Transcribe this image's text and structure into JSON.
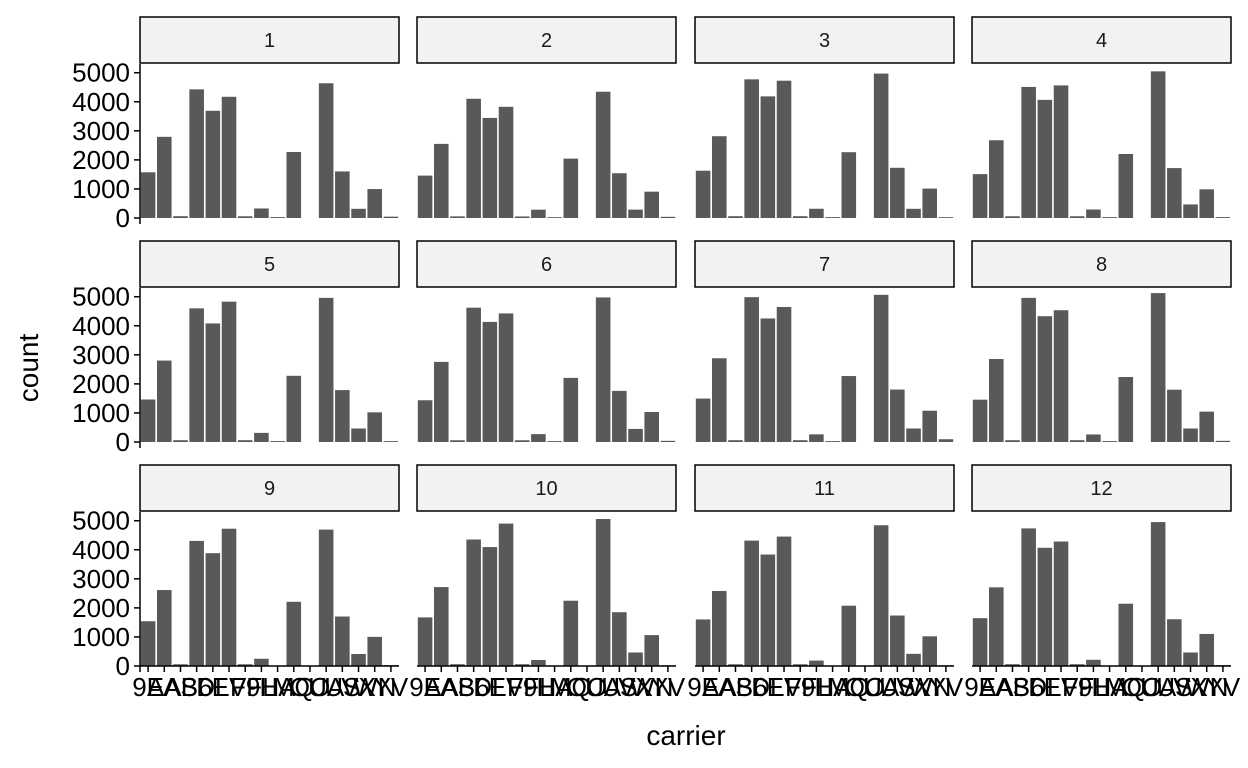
{
  "chart_data": {
    "type": "bar",
    "facet_by": "month",
    "facets": [
      "1",
      "2",
      "3",
      "4",
      "5",
      "6",
      "7",
      "8",
      "9",
      "10",
      "11",
      "12"
    ],
    "categories": [
      "9E",
      "AA",
      "AS",
      "B6",
      "DL",
      "EV",
      "F9",
      "FL",
      "HA",
      "MQ",
      "OO",
      "UA",
      "US",
      "VX",
      "WN",
      "YV"
    ],
    "xlabel": "carrier",
    "ylabel": "count",
    "ylim": [
      0,
      5300
    ],
    "yticks": [
      0,
      1000,
      2000,
      3000,
      4000,
      5000
    ],
    "bar_color": "#595959",
    "series": [
      {
        "name": "1",
        "values": [
          1573,
          2794,
          62,
          4427,
          3690,
          4171,
          59,
          328,
          31,
          2271,
          0,
          4637,
          1602,
          316,
          996,
          46
        ]
      },
      {
        "name": "2",
        "values": [
          1459,
          2551,
          56,
          4103,
          3444,
          3827,
          53,
          286,
          28,
          2044,
          0,
          4346,
          1540,
          288,
          906,
          41
        ]
      },
      {
        "name": "3",
        "values": [
          1627,
          2815,
          62,
          4772,
          4186,
          4726,
          62,
          318,
          31,
          2265,
          0,
          4971,
          1728,
          316,
          1012,
          28
        ]
      },
      {
        "name": "4",
        "values": [
          1511,
          2676,
          60,
          4511,
          4066,
          4563,
          60,
          292,
          30,
          2203,
          0,
          5047,
          1718,
          467,
          987,
          31
        ]
      },
      {
        "name": "5",
        "values": [
          1462,
          2803,
          62,
          4600,
          4080,
          4830,
          62,
          314,
          31,
          2278,
          0,
          4960,
          1787,
          465,
          1021,
          30
        ]
      },
      {
        "name": "6",
        "values": [
          1437,
          2757,
          60,
          4622,
          4133,
          4425,
          60,
          271,
          30,
          2207,
          0,
          4975,
          1759,
          450,
          1032,
          40
        ]
      },
      {
        "name": "7",
        "values": [
          1494,
          2882,
          62,
          4984,
          4251,
          4647,
          62,
          264,
          31,
          2270,
          0,
          5066,
          1805,
          465,
          1077,
          96
        ]
      },
      {
        "name": "8",
        "values": [
          1456,
          2856,
          62,
          4960,
          4330,
          4535,
          62,
          259,
          31,
          2238,
          0,
          5124,
          1800,
          465,
          1045,
          40
        ]
      },
      {
        "name": "9",
        "values": [
          1540,
          2614,
          60,
          4305,
          3883,
          4725,
          60,
          249,
          0,
          2210,
          0,
          4694,
          1703,
          413,
          1003,
          30
        ]
      },
      {
        "name": "10",
        "values": [
          1673,
          2716,
          62,
          4353,
          4093,
          4901,
          62,
          206,
          0,
          2247,
          0,
          5058,
          1852,
          465,
          1063,
          25
        ]
      },
      {
        "name": "11",
        "values": [
          1602,
          2582,
          60,
          4316,
          3836,
          4454,
          60,
          187,
          0,
          2075,
          0,
          4844,
          1737,
          419,
          1022,
          26
        ]
      },
      {
        "name": "12",
        "values": [
          1646,
          2707,
          62,
          4736,
          4068,
          4284,
          62,
          214,
          0,
          2143,
          0,
          4953,
          1609,
          465,
          1103,
          30
        ]
      }
    ]
  }
}
